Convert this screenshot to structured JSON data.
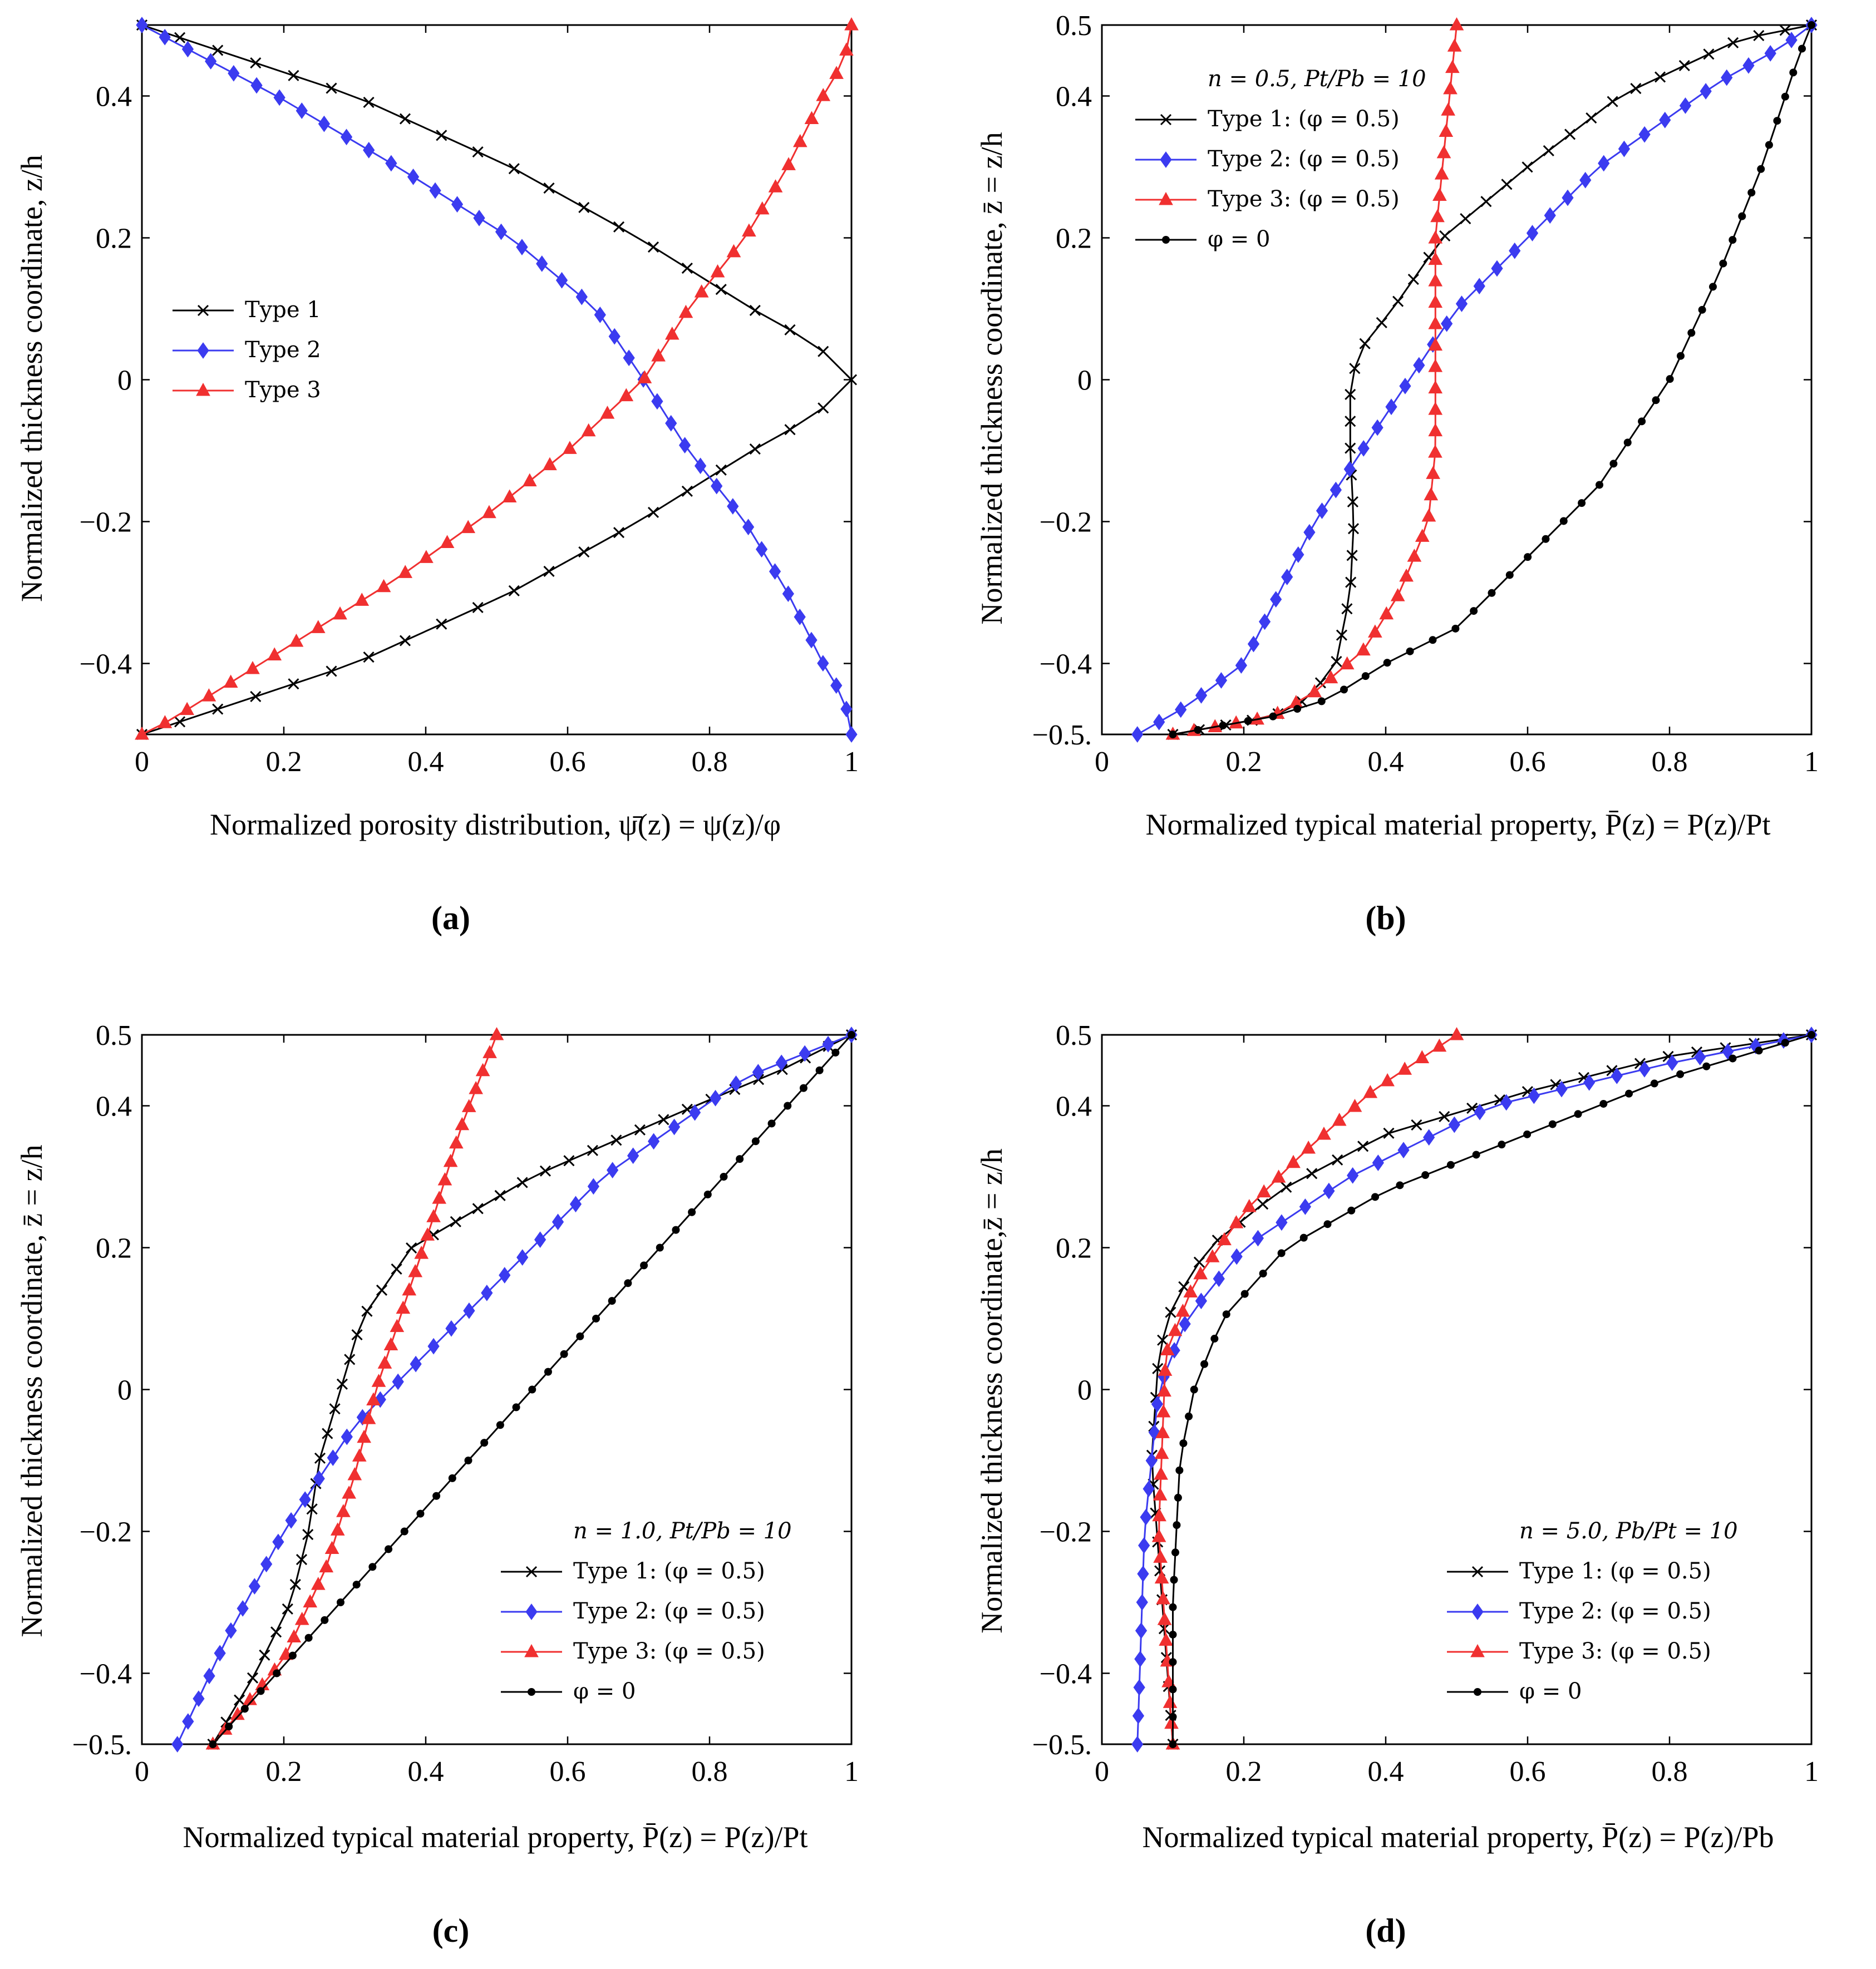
{
  "chart_data": [
    {
      "type": "line",
      "panel_label": "(a)",
      "xlabel": "Normalized porosity distribution, ψ̄(z) = ψ(z)/φ",
      "ylabel": "Normalized thickness coordinate, z/h",
      "xlim": [
        0,
        1
      ],
      "ylim": [
        -0.5,
        0.5
      ],
      "xticks": [
        0,
        0.2,
        0.4,
        0.6,
        0.8,
        1
      ],
      "yticks": [
        -0.4,
        -0.2,
        0,
        0.2,
        0.4
      ],
      "xtick_labels": [
        "0",
        "0.2",
        "0.4",
        "0.6",
        "0.8",
        "1"
      ],
      "ytick_labels": [
        "−0.4",
        "−0.2",
        "0",
        "0.2",
        "0.4"
      ],
      "legend_title": "",
      "legend_position": "middle-left",
      "series": [
        {
          "name": "Type 1",
          "color": "#000000",
          "marker": "x",
          "n": 41,
          "points": [
            [
              0,
              -0.5
            ],
            [
              0.3,
              -0.4
            ],
            [
              0.52,
              -0.3
            ],
            [
              0.7,
              -0.2
            ],
            [
              0.86,
              -0.1
            ],
            [
              0.95,
              -0.05
            ],
            [
              1,
              0
            ],
            [
              0.95,
              0.05
            ],
            [
              0.86,
              0.1
            ],
            [
              0.7,
              0.2
            ],
            [
              0.52,
              0.3
            ],
            [
              0.3,
              0.4
            ],
            [
              0,
              0.5
            ]
          ]
        },
        {
          "name": "Type 2",
          "color": "#3b3bf0",
          "marker": "diamond",
          "n": 41,
          "points": [
            [
              0,
              0.5
            ],
            [
              0.19,
              0.4
            ],
            [
              0.36,
              0.3
            ],
            [
              0.52,
              0.2
            ],
            [
              0.64,
              0.1
            ],
            [
              0.707,
              0
            ],
            [
              0.77,
              -0.1
            ],
            [
              0.85,
              -0.2
            ],
            [
              0.91,
              -0.3
            ],
            [
              0.96,
              -0.4
            ],
            [
              0.99,
              -0.45
            ],
            [
              1,
              -0.5
            ]
          ]
        },
        {
          "name": "Type 3",
          "color": "#f03030",
          "marker": "triangle",
          "n": 41,
          "points": [
            [
              0,
              -0.5
            ],
            [
              0.04,
              -0.48
            ],
            [
              0.2,
              -0.38
            ],
            [
              0.36,
              -0.28
            ],
            [
              0.5,
              -0.18
            ],
            [
              0.6,
              -0.1
            ],
            [
              0.707,
              0
            ],
            [
              0.77,
              0.1
            ],
            [
              0.85,
              0.2
            ],
            [
              0.91,
              0.3
            ],
            [
              0.96,
              0.4
            ],
            [
              0.99,
              0.45
            ],
            [
              1,
              0.5
            ]
          ]
        }
      ]
    },
    {
      "type": "line",
      "panel_label": "(b)",
      "xlabel": "Normalized typical material property, P̄(z) = P(z)/Pt",
      "ylabel": "Normalized thickness coordinate, z̄ = z/h",
      "xlim": [
        0,
        1
      ],
      "ylim": [
        -0.5,
        0.5
      ],
      "xticks": [
        0,
        0.2,
        0.4,
        0.6,
        0.8,
        1
      ],
      "yticks": [
        -0.5,
        -0.4,
        -0.2,
        0,
        0.2,
        0.4,
        0.5
      ],
      "xtick_labels": [
        "0",
        "0.2",
        "0.4",
        "0.6",
        "0.8",
        "1"
      ],
      "ytick_labels": [
        "−0.5.",
        "−0.4",
        "−0.2",
        "0",
        "0.2",
        "0.4",
        "0.5"
      ],
      "legend_title": "n = 0.5, Pt/Pb = 10",
      "legend_position": "top-left",
      "series": [
        {
          "name": "Type 1: (φ = 0.5)",
          "color": "#000000",
          "marker": "x",
          "n": 41,
          "points": [
            [
              0.1,
              -0.5
            ],
            [
              0.24,
              -0.475
            ],
            [
              0.29,
              -0.45
            ],
            [
              0.33,
              -0.4
            ],
            [
              0.35,
              -0.3
            ],
            [
              0.355,
              -0.2
            ],
            [
              0.35,
              -0.1
            ],
            [
              0.35,
              0
            ],
            [
              0.37,
              0.05
            ],
            [
              0.41,
              0.1
            ],
            [
              0.48,
              0.2
            ],
            [
              0.6,
              0.3
            ],
            [
              0.73,
              0.4
            ],
            [
              0.9,
              0.48
            ],
            [
              1,
              0.5
            ]
          ]
        },
        {
          "name": "Type 2: (φ = 0.5)",
          "color": "#3b3bf0",
          "marker": "diamond",
          "n": 41,
          "points": [
            [
              0.05,
              -0.5
            ],
            [
              0.12,
              -0.46
            ],
            [
              0.2,
              -0.4
            ],
            [
              0.3,
              -0.2
            ],
            [
              0.4,
              -0.05
            ],
            [
              0.5,
              0.1
            ],
            [
              0.7,
              0.3
            ],
            [
              0.87,
              0.42
            ],
            [
              0.96,
              0.47
            ],
            [
              1,
              0.5
            ]
          ]
        },
        {
          "name": "Type 3: (φ = 0.5)",
          "color": "#f03030",
          "marker": "triangle",
          "n": 41,
          "points": [
            [
              0.1,
              -0.5
            ],
            [
              0.24,
              -0.475
            ],
            [
              0.3,
              -0.44
            ],
            [
              0.37,
              -0.38
            ],
            [
              0.42,
              -0.3
            ],
            [
              0.46,
              -0.2
            ],
            [
              0.47,
              -0.1
            ],
            [
              0.47,
              0
            ],
            [
              0.47,
              0.1
            ],
            [
              0.47,
              0.2
            ],
            [
              0.48,
              0.3
            ],
            [
              0.49,
              0.4
            ],
            [
              0.5,
              0.5
            ]
          ]
        },
        {
          "name": "φ = 0",
          "color": "#000000",
          "marker": "dot",
          "n": 41,
          "points": [
            [
              0.1,
              -0.5
            ],
            [
              0.24,
              -0.475
            ],
            [
              0.32,
              -0.45
            ],
            [
              0.4,
              -0.4
            ],
            [
              0.5,
              -0.35
            ],
            [
              0.6,
              -0.25
            ],
            [
              0.7,
              -0.15
            ],
            [
              0.8,
              0
            ],
            [
              0.87,
              0.15
            ],
            [
              0.93,
              0.3
            ],
            [
              0.98,
              0.45
            ],
            [
              1,
              0.5
            ]
          ]
        }
      ]
    },
    {
      "type": "line",
      "panel_label": "(c)",
      "xlabel": "Normalized typical material property, P̄(z) = P(z)/Pt",
      "ylabel": "Normalized thickness coordinate, z̄ = z/h",
      "xlim": [
        0,
        1
      ],
      "ylim": [
        -0.5,
        0.5
      ],
      "xticks": [
        0,
        0.2,
        0.4,
        0.6,
        0.8,
        1
      ],
      "yticks": [
        -0.5,
        -0.4,
        -0.2,
        0,
        0.2,
        0.4,
        0.5
      ],
      "xtick_labels": [
        "0",
        "0.2",
        "0.4",
        "0.6",
        "0.8",
        "1"
      ],
      "ytick_labels": [
        "−0.5.",
        "−0.4",
        "−0.2",
        "0",
        "0.2",
        "0.4",
        "0.5"
      ],
      "legend_title": "n = 1.0, Pt/Pb = 10",
      "legend_position": "bottom-right",
      "series": [
        {
          "name": "Type 1: (φ = 0.5)",
          "color": "#000000",
          "marker": "x",
          "n": 41,
          "points": [
            [
              0.1,
              -0.5
            ],
            [
              0.16,
              -0.4
            ],
            [
              0.21,
              -0.3
            ],
            [
              0.235,
              -0.2
            ],
            [
              0.25,
              -0.1
            ],
            [
              0.28,
              0
            ],
            [
              0.31,
              0.1
            ],
            [
              0.38,
              0.2
            ],
            [
              0.55,
              0.3
            ],
            [
              0.78,
              0.4
            ],
            [
              0.9,
              0.45
            ],
            [
              1,
              0.5
            ]
          ]
        },
        {
          "name": "Type 2: (φ = 0.5)",
          "color": "#3b3bf0",
          "marker": "diamond",
          "n": 41,
          "points": [
            [
              0.05,
              -0.5
            ],
            [
              0.12,
              -0.35
            ],
            [
              0.2,
              -0.2
            ],
            [
              0.3,
              -0.05
            ],
            [
              0.45,
              0.1
            ],
            [
              0.65,
              0.3
            ],
            [
              0.85,
              0.44
            ],
            [
              1,
              0.5
            ]
          ]
        },
        {
          "name": "Type 3: (φ = 0.5)",
          "color": "#f03030",
          "marker": "triangle",
          "n": 41,
          "points": [
            [
              0.1,
              -0.5
            ],
            [
              0.2,
              -0.38
            ],
            [
              0.26,
              -0.25
            ],
            [
              0.3,
              -0.12
            ],
            [
              0.33,
              0
            ],
            [
              0.37,
              0.12
            ],
            [
              0.41,
              0.24
            ],
            [
              0.45,
              0.37
            ],
            [
              0.5,
              0.5
            ]
          ]
        },
        {
          "name": "φ = 0",
          "color": "#000000",
          "marker": "dot",
          "n": 41,
          "points": [
            [
              0.1,
              -0.5
            ],
            [
              1,
              0.5
            ]
          ]
        }
      ]
    },
    {
      "type": "line",
      "panel_label": "(d)",
      "xlabel": "Normalized typical material property, P̄(z) = P(z)/Pb",
      "ylabel": "Normalized thickness coordinate,z̄ = z/h",
      "xlim": [
        0,
        1
      ],
      "ylim": [
        -0.5,
        0.5
      ],
      "xticks": [
        0,
        0.2,
        0.4,
        0.6,
        0.8,
        1
      ],
      "yticks": [
        -0.5,
        -0.4,
        -0.2,
        0,
        0.2,
        0.4,
        0.5
      ],
      "xtick_labels": [
        "0",
        "0.2",
        "0.4",
        "0.6",
        "0.8",
        "1"
      ],
      "ytick_labels": [
        "−0.5.",
        "−0.4",
        "−0.2",
        "0",
        "0.2",
        "0.4",
        "0.5"
      ],
      "legend_title": "n = 5.0, Pb/Pt = 10",
      "legend_position": "bottom-right",
      "series": [
        {
          "name": "Type 1: (φ = 0.5)",
          "color": "#000000",
          "marker": "x",
          "n": 41,
          "points": [
            [
              0.1,
              -0.5
            ],
            [
              0.085,
              -0.3
            ],
            [
              0.07,
              -0.1
            ],
            [
              0.08,
              0.05
            ],
            [
              0.1,
              0.12
            ],
            [
              0.15,
              0.2
            ],
            [
              0.25,
              0.28
            ],
            [
              0.4,
              0.36
            ],
            [
              0.6,
              0.42
            ],
            [
              0.8,
              0.47
            ],
            [
              1,
              0.5
            ]
          ]
        },
        {
          "name": "Type 2: (φ = 0.5)",
          "color": "#3b3bf0",
          "marker": "diamond",
          "n": 41,
          "points": [
            [
              0.05,
              -0.5
            ],
            [
              0.06,
              -0.2
            ],
            [
              0.08,
              0
            ],
            [
              0.12,
              0.1
            ],
            [
              0.2,
              0.2
            ],
            [
              0.35,
              0.3
            ],
            [
              0.55,
              0.4
            ],
            [
              0.8,
              0.46
            ],
            [
              1,
              0.5
            ]
          ]
        },
        {
          "name": "Type 3: (φ = 0.5)",
          "color": "#f03030",
          "marker": "triangle",
          "n": 41,
          "points": [
            [
              0.1,
              -0.5
            ],
            [
              0.08,
              -0.2
            ],
            [
              0.09,
              0.05
            ],
            [
              0.13,
              0.15
            ],
            [
              0.2,
              0.25
            ],
            [
              0.28,
              0.33
            ],
            [
              0.38,
              0.42
            ],
            [
              0.5,
              0.5
            ]
          ]
        },
        {
          "name": "φ = 0",
          "color": "#000000",
          "marker": "dot",
          "n": 41,
          "points": [
            [
              0.1,
              -0.5
            ],
            [
              0.1,
              -0.3
            ],
            [
              0.11,
              -0.1
            ],
            [
              0.13,
              0
            ],
            [
              0.17,
              0.1
            ],
            [
              0.26,
              0.2
            ],
            [
              0.4,
              0.28
            ],
            [
              0.6,
              0.36
            ],
            [
              0.8,
              0.44
            ],
            [
              1,
              0.5
            ]
          ]
        }
      ]
    }
  ]
}
